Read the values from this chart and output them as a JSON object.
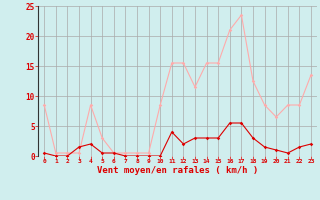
{
  "hours": [
    0,
    1,
    2,
    3,
    4,
    5,
    6,
    7,
    8,
    9,
    10,
    11,
    12,
    13,
    14,
    15,
    16,
    17,
    18,
    19,
    20,
    21,
    22,
    23
  ],
  "rafales": [
    8.5,
    0.5,
    0.5,
    0.5,
    8.5,
    3.0,
    0.5,
    0.5,
    0.5,
    0.5,
    8.5,
    15.5,
    15.5,
    11.5,
    15.5,
    15.5,
    21.0,
    23.5,
    12.5,
    8.5,
    6.5,
    8.5,
    8.5,
    13.5
  ],
  "moyen": [
    0.5,
    0.0,
    0.0,
    1.5,
    2.0,
    0.5,
    0.5,
    0.0,
    0.0,
    0.0,
    0.0,
    4.0,
    2.0,
    3.0,
    3.0,
    3.0,
    5.5,
    5.5,
    3.0,
    1.5,
    1.0,
    0.5,
    1.5,
    2.0
  ],
  "color_rafales": "#ffaaaa",
  "color_moyen": "#dd0000",
  "bg_color": "#d0eeee",
  "grid_color": "#aaaaaa",
  "xlabel": "Vent moyen/en rafales ( km/h )",
  "xlabel_color": "#dd0000",
  "tick_color": "#dd0000",
  "ylim": [
    0,
    25
  ],
  "yticks": [
    0,
    5,
    10,
    15,
    20,
    25
  ],
  "xlim": [
    -0.5,
    23.5
  ],
  "fig_width": 3.2,
  "fig_height": 2.0,
  "dpi": 100
}
